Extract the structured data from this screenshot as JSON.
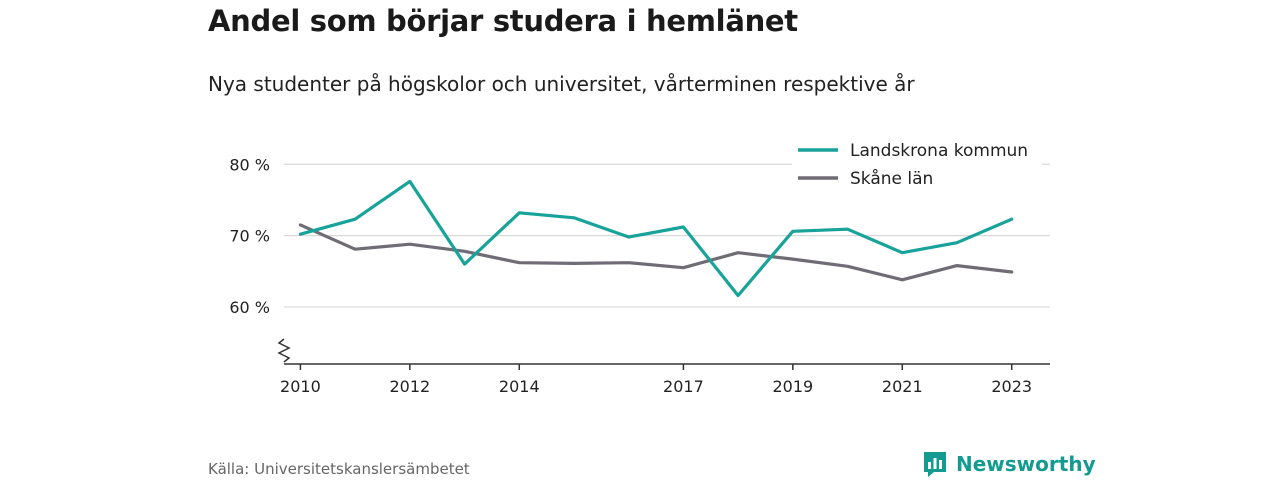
{
  "title": "Andel som börjar studera i hemlänet",
  "subtitle": "Nya studenter på högskolor och universitet, vårterminen respektive år",
  "source": "Källa: Universitetskanslersämbetet",
  "brand": {
    "name": "Newsworthy",
    "icon": "newsworthy-logo-icon",
    "color": "#149b91"
  },
  "chart_data": {
    "type": "line",
    "x": [
      2010,
      2011,
      2012,
      2013,
      2014,
      2015,
      2016,
      2017,
      2018,
      2019,
      2020,
      2021,
      2022,
      2023
    ],
    "x_tick_values": [
      2010,
      2012,
      2014,
      2017,
      2019,
      2021,
      2023
    ],
    "x_tick_labels": [
      "2010",
      "2012",
      "2014",
      "2017",
      "2019",
      "2021",
      "2023"
    ],
    "y_tick_values": [
      60,
      70,
      80
    ],
    "y_tick_labels": [
      "60 %",
      "70 %",
      "80 %"
    ],
    "ylim": [
      52,
      82
    ],
    "y_axis_break": true,
    "grid": true,
    "legend_position": "top-right",
    "series": [
      {
        "name": "Landskrona kommun",
        "color": "#17a39a",
        "values": [
          70.2,
          72.3,
          77.6,
          66.0,
          73.2,
          72.5,
          69.8,
          71.2,
          61.6,
          70.6,
          70.9,
          67.6,
          69.0,
          72.3
        ]
      },
      {
        "name": "Skåne län",
        "color": "#706c75",
        "values": [
          71.5,
          68.1,
          68.8,
          67.8,
          66.2,
          66.1,
          66.2,
          65.5,
          67.6,
          66.7,
          65.7,
          63.8,
          65.8,
          64.9
        ]
      }
    ]
  }
}
